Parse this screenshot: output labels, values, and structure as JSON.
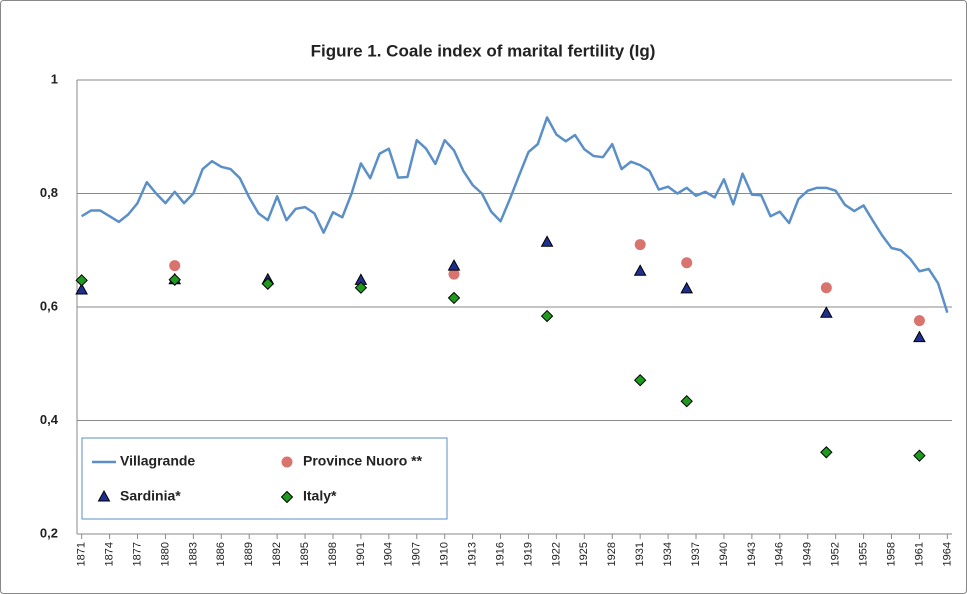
{
  "chart_data": {
    "type": "line",
    "title": "Figure 1. Coale index of marital fertility (Ig)",
    "xlim": [
      1871,
      1964
    ],
    "xticks": [
      1871,
      1874,
      1877,
      1880,
      1883,
      1886,
      1889,
      1892,
      1895,
      1898,
      1901,
      1904,
      1907,
      1910,
      1913,
      1916,
      1919,
      1922,
      1925,
      1928,
      1931,
      1934,
      1937,
      1940,
      1943,
      1946,
      1949,
      1952,
      1955,
      1958,
      1961,
      1964
    ],
    "ylim": [
      0.2,
      1
    ],
    "yticks": [
      {
        "value": 0.2,
        "label": "0,2"
      },
      {
        "value": 0.4,
        "label": "0,4"
      },
      {
        "value": 0.6,
        "label": "0,6"
      },
      {
        "value": 0.8,
        "label": "0,8"
      },
      1
    ],
    "grid": true,
    "legend": "lower left",
    "series": [
      {
        "name": "Villagrande",
        "marker": "line",
        "color": "#5b8fc7",
        "x": [
          1871,
          1872,
          1873,
          1874,
          1875,
          1876,
          1877,
          1878,
          1879,
          1880,
          1881,
          1882,
          1883,
          1884,
          1885,
          1886,
          1887,
          1888,
          1889,
          1890,
          1891,
          1892,
          1893,
          1894,
          1895,
          1896,
          1897,
          1898,
          1899,
          1900,
          1901,
          1902,
          1903,
          1904,
          1905,
          1906,
          1907,
          1908,
          1909,
          1910,
          1911,
          1912,
          1913,
          1914,
          1915,
          1916,
          1917,
          1918,
          1919,
          1920,
          1921,
          1922,
          1923,
          1924,
          1925,
          1926,
          1927,
          1928,
          1929,
          1930,
          1931,
          1932,
          1933,
          1934,
          1935,
          1936,
          1937,
          1938,
          1939,
          1940,
          1941,
          1942,
          1943,
          1944,
          1945,
          1946,
          1947,
          1948,
          1949,
          1950,
          1951,
          1952,
          1953,
          1954,
          1955,
          1956,
          1957,
          1958,
          1959,
          1960,
          1961,
          1962,
          1963,
          1964
        ],
        "values": [
          0.76,
          0.77,
          0.77,
          0.76,
          0.75,
          0.763,
          0.783,
          0.82,
          0.8,
          0.783,
          0.803,
          0.783,
          0.8,
          0.843,
          0.857,
          0.847,
          0.843,
          0.827,
          0.793,
          0.765,
          0.753,
          0.795,
          0.753,
          0.773,
          0.776,
          0.765,
          0.731,
          0.767,
          0.758,
          0.8,
          0.853,
          0.827,
          0.87,
          0.879,
          0.828,
          0.829,
          0.894,
          0.879,
          0.852,
          0.894,
          0.876,
          0.84,
          0.815,
          0.8,
          0.768,
          0.751,
          0.79,
          0.832,
          0.873,
          0.887,
          0.934,
          0.904,
          0.892,
          0.903,
          0.878,
          0.866,
          0.864,
          0.887,
          0.843,
          0.856,
          0.85,
          0.84,
          0.807,
          0.812,
          0.8,
          0.81,
          0.796,
          0.803,
          0.793,
          0.825,
          0.781,
          0.835,
          0.798,
          0.797,
          0.76,
          0.768,
          0.748,
          0.79,
          0.805,
          0.81,
          0.81,
          0.805,
          0.78,
          0.769,
          0.779,
          0.752,
          0.726,
          0.704,
          0.7,
          0.685,
          0.663,
          0.667,
          0.642,
          0.59
        ]
      },
      {
        "name": "Province Nuoro **",
        "marker": "circle",
        "color": "#d9736d",
        "x": [
          1881,
          1911,
          1931,
          1936,
          1951,
          1961
        ],
        "values": [
          0.673,
          0.658,
          0.71,
          0.678,
          0.634,
          0.576
        ]
      },
      {
        "name": "Sardinia*",
        "marker": "triangle",
        "color": "#1f2f8f",
        "x": [
          1871,
          1881,
          1891,
          1901,
          1911,
          1921,
          1931,
          1936,
          1951,
          1961
        ],
        "values": [
          0.63,
          0.648,
          0.648,
          0.647,
          0.672,
          0.714,
          0.663,
          0.632,
          0.589,
          0.546
        ]
      },
      {
        "name": "Italy*",
        "marker": "diamond",
        "color": "#1e9a1e",
        "x": [
          1871,
          1881,
          1891,
          1901,
          1911,
          1921,
          1931,
          1936,
          1951,
          1961
        ],
        "values": [
          0.647,
          0.648,
          0.641,
          0.634,
          0.616,
          0.584,
          0.471,
          0.434,
          0.344,
          0.338
        ]
      }
    ]
  }
}
